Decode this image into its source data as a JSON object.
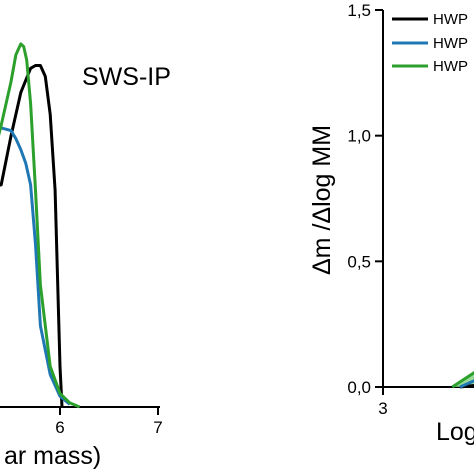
{
  "chart_data": [
    {
      "type": "line",
      "panel_label": "SWS-IP",
      "xlabel_fragment": "ar mass)",
      "x_ticks": [
        "6",
        "7"
      ],
      "series": [
        {
          "color": "#000000",
          "x": [
            5.2,
            5.4,
            5.5,
            5.6,
            5.7,
            5.75,
            5.8,
            5.85,
            5.9,
            5.95,
            6.0,
            6.02
          ],
          "y": [
            0.8,
            0.82,
            1.0,
            1.16,
            1.25,
            1.26,
            1.26,
            1.22,
            1.08,
            0.8,
            0.15,
            0.0
          ]
        },
        {
          "color": "#1f77b4",
          "x": [
            5.2,
            5.3,
            5.4,
            5.5,
            5.55,
            5.6,
            5.65,
            5.7,
            5.75,
            5.8,
            5.9,
            6.0,
            6.1
          ],
          "y": [
            0.95,
            1.0,
            1.03,
            1.02,
            0.99,
            0.95,
            0.9,
            0.82,
            0.6,
            0.3,
            0.12,
            0.04,
            0.01
          ]
        },
        {
          "color": "#2ca02c",
          "x": [
            5.2,
            5.3,
            5.4,
            5.5,
            5.55,
            5.6,
            5.63,
            5.66,
            5.7,
            5.75,
            5.8,
            5.9,
            6.0,
            6.1,
            6.2
          ],
          "y": [
            0.8,
            0.9,
            1.04,
            1.2,
            1.3,
            1.34,
            1.33,
            1.28,
            1.12,
            0.8,
            0.45,
            0.15,
            0.05,
            0.015,
            0.0
          ]
        }
      ]
    },
    {
      "type": "area",
      "ylabel": "Δm /Δlog MM",
      "xlabel_fragment": "Log",
      "y_ticks": [
        "0,0",
        "0,5",
        "1,0",
        "1,5"
      ],
      "x_ticks": [
        "3"
      ],
      "ylim": [
        0,
        1.5
      ],
      "legend": [
        "HWP",
        "HWP",
        "HWP"
      ],
      "legend_colors": [
        "#000000",
        "#1f77b4",
        "#2ca02c"
      ],
      "series": [
        {
          "color": "#000000",
          "x": [
            4.0,
            4.3,
            4.6,
            4.9
          ],
          "y": [
            0.0,
            0.01,
            0.03,
            0.06
          ]
        },
        {
          "color": "#1f77b4",
          "x": [
            4.0,
            4.3,
            4.5,
            4.7,
            4.9
          ],
          "y": [
            0.0,
            0.04,
            0.07,
            0.08,
            0.08
          ]
        },
        {
          "color": "#2ca02c",
          "x": [
            3.9,
            4.1,
            4.3,
            4.5,
            4.7,
            4.9
          ],
          "y": [
            0.0,
            0.04,
            0.08,
            0.1,
            0.11,
            0.11
          ]
        }
      ]
    }
  ]
}
